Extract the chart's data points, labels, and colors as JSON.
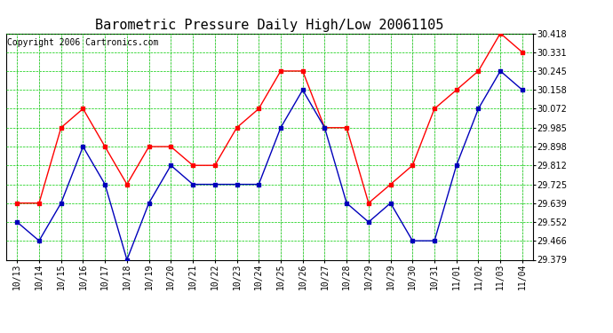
{
  "title": "Barometric Pressure Daily High/Low 20061105",
  "copyright": "Copyright 2006 Cartronics.com",
  "xlabels": [
    "10/13",
    "10/14",
    "10/15",
    "10/16",
    "10/17",
    "10/18",
    "10/19",
    "10/20",
    "10/21",
    "10/22",
    "10/23",
    "10/24",
    "10/25",
    "10/26",
    "10/27",
    "10/28",
    "10/29",
    "10/29",
    "10/30",
    "10/31",
    "11/01",
    "11/02",
    "11/03",
    "11/04"
  ],
  "high_values": [
    29.639,
    29.639,
    29.985,
    30.072,
    29.898,
    29.725,
    29.898,
    29.898,
    29.812,
    29.812,
    29.985,
    30.072,
    30.245,
    30.245,
    29.985,
    29.985,
    29.639,
    29.725,
    29.812,
    30.072,
    30.158,
    30.245,
    30.418,
    30.331
  ],
  "low_values": [
    29.552,
    29.466,
    29.639,
    29.898,
    29.725,
    29.379,
    29.639,
    29.812,
    29.725,
    29.725,
    29.725,
    29.725,
    29.985,
    30.158,
    29.985,
    29.639,
    29.552,
    29.639,
    29.466,
    29.466,
    29.812,
    30.072,
    30.245,
    30.158
  ],
  "ylim_min": 29.379,
  "ylim_max": 30.418,
  "yticks": [
    29.379,
    29.466,
    29.552,
    29.639,
    29.725,
    29.812,
    29.898,
    29.985,
    30.072,
    30.158,
    30.245,
    30.331,
    30.418
  ],
  "high_color": "#ff0000",
  "low_color": "#0000bb",
  "bg_color": "#ffffff",
  "grid_color": "#00cc00",
  "title_fontsize": 11,
  "copyright_fontsize": 7,
  "tick_fontsize": 7
}
